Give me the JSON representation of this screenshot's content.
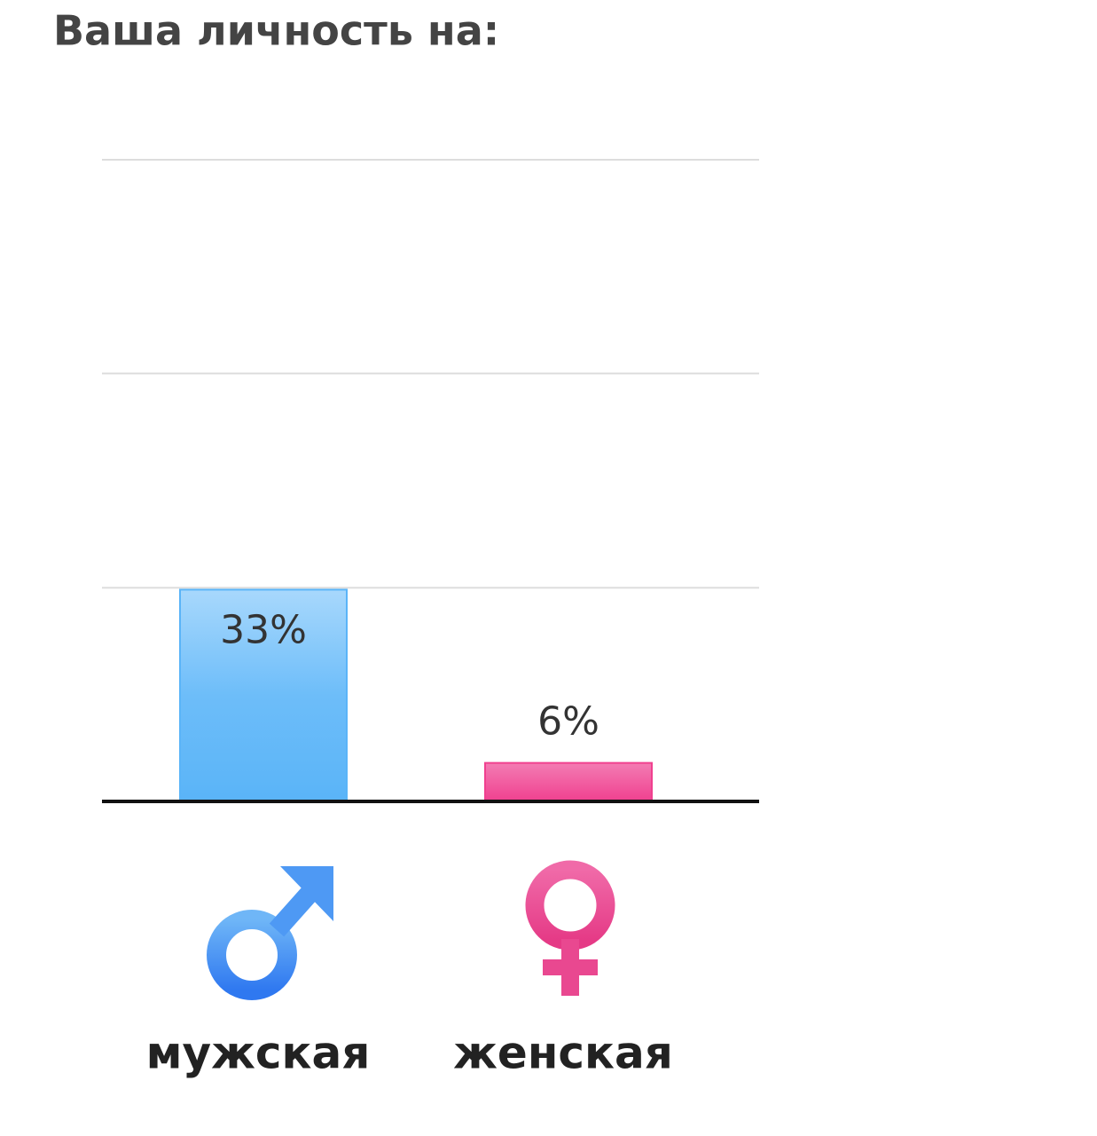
{
  "chart_data": {
    "type": "bar",
    "title": "Ваша личность на:",
    "categories": [
      "мужская",
      "женская"
    ],
    "values": [
      33,
      6
    ],
    "value_labels": [
      "33%",
      "6%"
    ],
    "colors": [
      "#5ab4f8",
      "#f0408f"
    ],
    "ylim": [
      0,
      100
    ],
    "gridlines": [
      33.3,
      66.7,
      100
    ],
    "grid": true
  }
}
